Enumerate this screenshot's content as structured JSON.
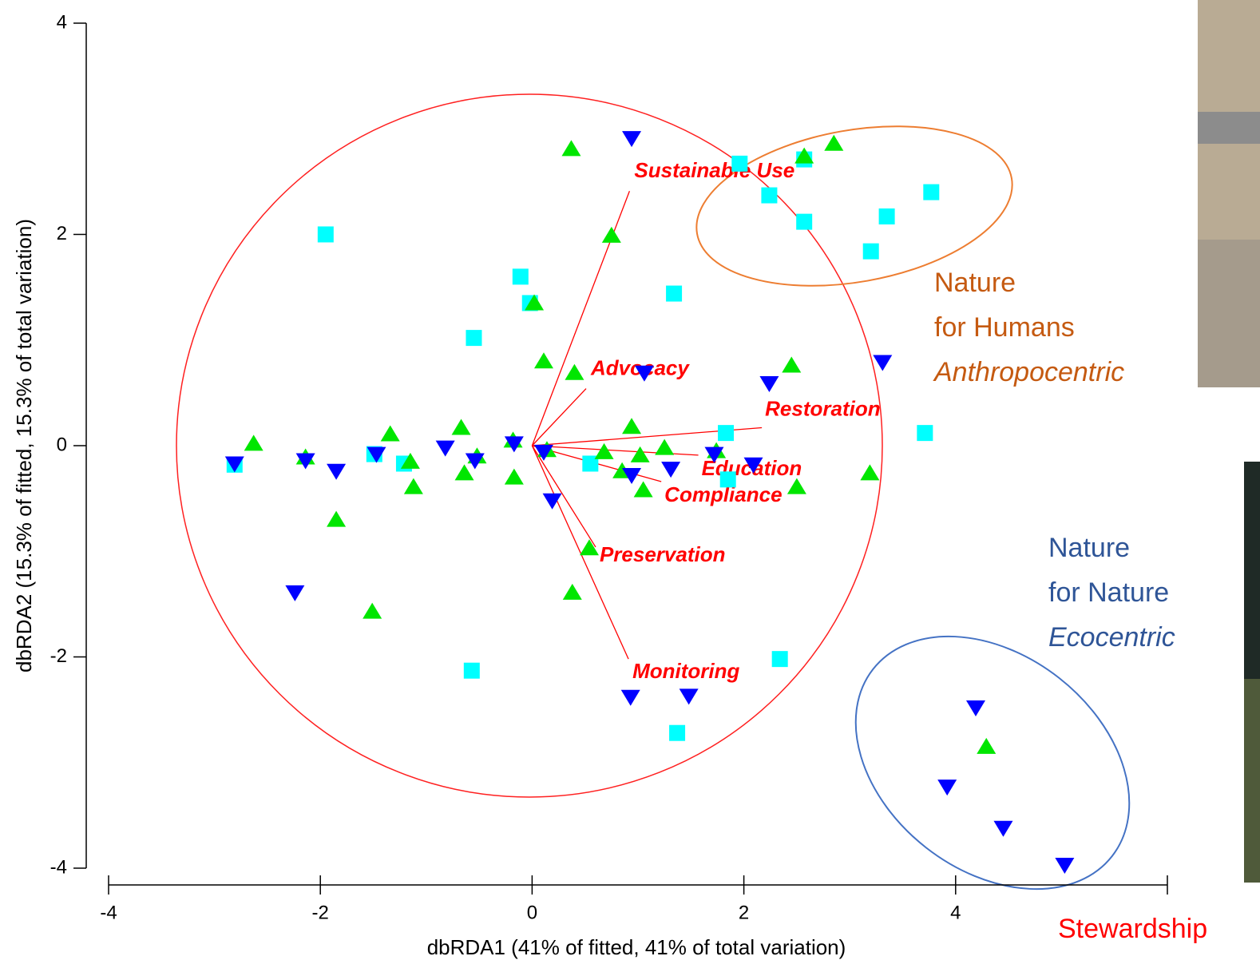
{
  "chart_data": {
    "type": "scatter",
    "x_label": "dbRDA1 (41% of fitted, 41% of total variation)",
    "y_label": "dbRDA2 (15.3% of fitted, 15.3% of total variation)",
    "xlim": [
      -4,
      6
    ],
    "ylim": [
      -4,
      4
    ],
    "xticks": [
      -4,
      -2,
      0,
      2,
      4
    ],
    "yticks": [
      -4,
      -2,
      0,
      2,
      4
    ],
    "series": [
      {
        "color": "#00ffff",
        "marker": "square",
        "x": [
          -2.81,
          -1.95,
          -1.49,
          -1.21,
          -0.55,
          -0.57,
          -0.11,
          -0.02,
          0.55,
          1.34,
          1.37,
          1.83,
          1.85,
          1.96,
          2.24,
          2.34,
          2.57,
          2.57,
          3.2,
          3.35,
          3.77,
          3.71
        ],
        "values": [
          -0.18,
          2.0,
          -0.08,
          -0.17,
          1.02,
          -2.13,
          1.6,
          1.35,
          -0.17,
          1.44,
          -2.72,
          0.12,
          -0.32,
          2.67,
          2.37,
          -2.02,
          2.12,
          2.71,
          1.84,
          2.17,
          2.4,
          0.12
        ]
      },
      {
        "color": "#00e600",
        "marker": "triangle-up",
        "x": [
          -2.63,
          -2.14,
          -1.85,
          -1.51,
          -1.34,
          -1.15,
          -1.12,
          -0.67,
          -0.64,
          -0.52,
          -0.17,
          -0.18,
          0.02,
          0.11,
          0.14,
          0.37,
          0.4,
          0.38,
          0.54,
          0.68,
          0.75,
          0.85,
          0.94,
          1.02,
          1.05,
          1.25,
          1.74,
          2.45,
          2.5,
          2.57,
          2.85,
          3.19,
          4.29
        ],
        "values": [
          0.02,
          -0.11,
          -0.7,
          -1.57,
          0.11,
          -0.15,
          -0.39,
          0.17,
          -0.26,
          -0.1,
          -0.3,
          0.05,
          1.35,
          0.8,
          -0.04,
          2.81,
          0.69,
          -1.39,
          -0.97,
          -0.06,
          1.99,
          -0.24,
          0.18,
          -0.09,
          -0.42,
          -0.02,
          -0.05,
          0.76,
          -0.39,
          2.74,
          2.86,
          -0.26,
          -2.85
        ]
      },
      {
        "color": "#0000ff",
        "marker": "triangle-down",
        "x": [
          -2.81,
          -2.14,
          -1.85,
          -2.24,
          -1.47,
          -0.82,
          -0.54,
          -0.17,
          0.11,
          0.19,
          0.94,
          0.94,
          1.06,
          1.31,
          0.93,
          1.48,
          1.72,
          2.09,
          2.24,
          3.31,
          4.19,
          3.92,
          4.45,
          5.03
        ],
        "values": [
          -0.17,
          -0.14,
          -0.24,
          -1.39,
          -0.08,
          -0.02,
          -0.14,
          0.02,
          -0.06,
          -0.52,
          2.91,
          -0.28,
          0.69,
          -0.22,
          -2.38,
          -2.37,
          -0.08,
          -0.18,
          0.59,
          0.79,
          -2.48,
          -3.23,
          -3.62,
          -3.97
        ]
      }
    ],
    "vector_color": "#ff0000",
    "vectors": [
      {
        "label": "Sustainable Use",
        "x": 0.92,
        "y": 2.41
      },
      {
        "label": "Advocacy",
        "x": 0.51,
        "y": 0.54
      },
      {
        "label": "Restoration",
        "x": 2.17,
        "y": 0.17
      },
      {
        "label": "Education",
        "x": 1.57,
        "y": -0.09
      },
      {
        "label": "Compliance",
        "x": 1.22,
        "y": -0.34
      },
      {
        "label": "Preservation",
        "x": 0.6,
        "y": -0.96
      },
      {
        "label": "Monitoring",
        "x": 0.91,
        "y": -2.02
      }
    ],
    "annotations": [
      {
        "lines": [
          "Nature",
          "for Humans",
          "Anthropocentric"
        ],
        "color": "#c55a11"
      },
      {
        "lines": [
          "Nature",
          "for Nature",
          "Ecocentric"
        ],
        "color": "#2f5597"
      },
      {
        "lines": [
          "Stewardship"
        ],
        "color": "#ff0000"
      }
    ]
  }
}
